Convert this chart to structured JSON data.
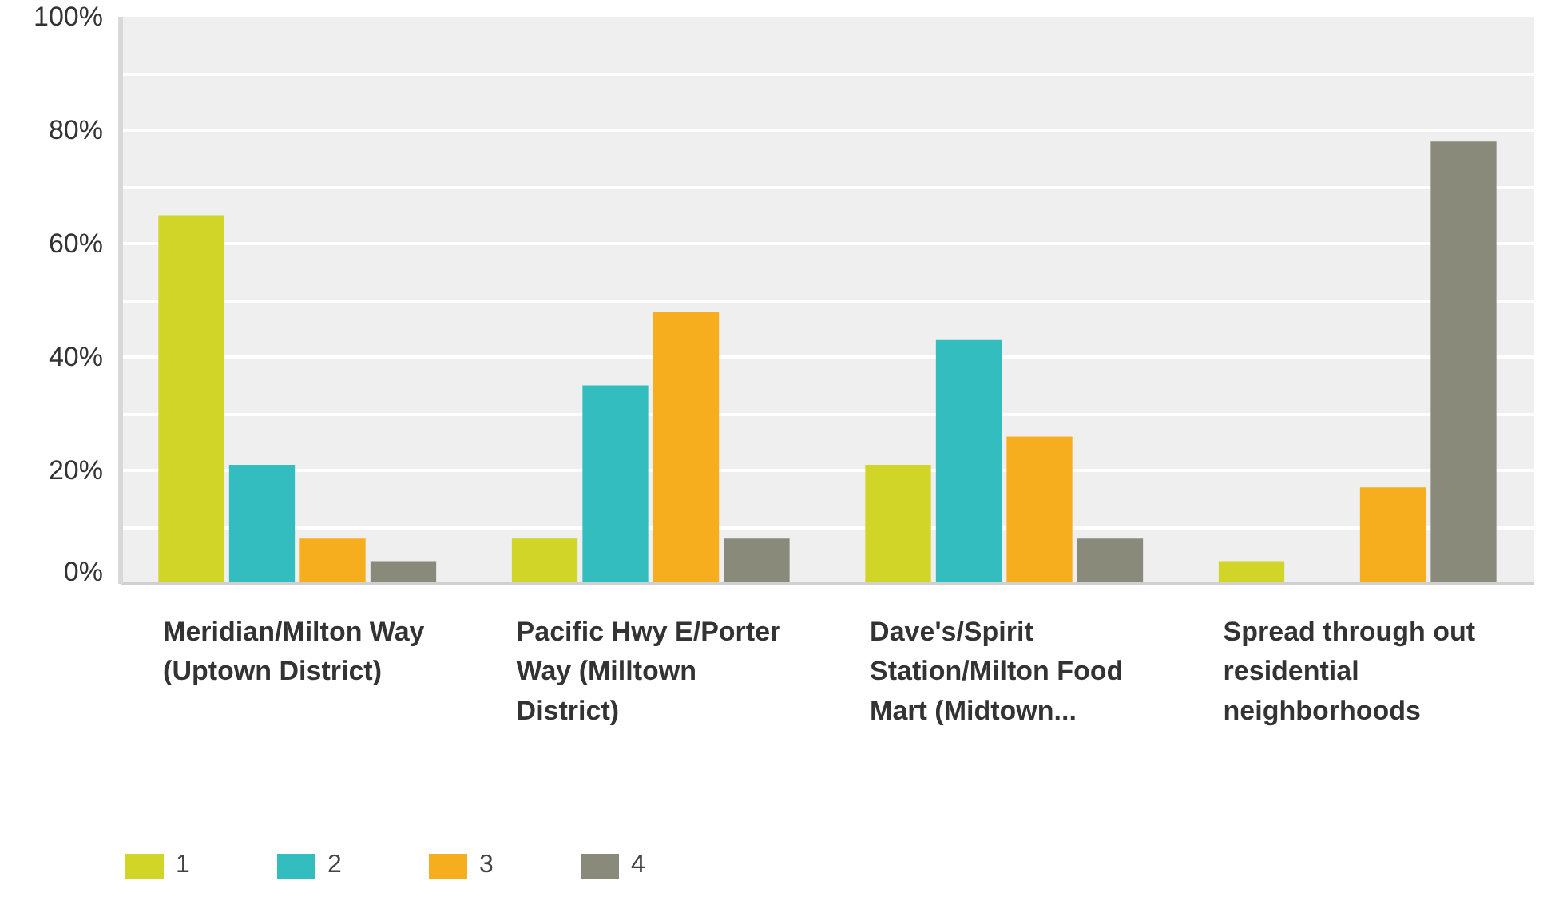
{
  "chart_data": {
    "type": "bar",
    "categories": [
      "Meridian/Milton Way (Uptown District)",
      "Pacific Hwy E/Porter Way (Milltown District)",
      "Dave's/Spirit Station/Milton Food Mart (Midtown...",
      "Spread through out residential neighborhoods"
    ],
    "series": [
      {
        "name": "1",
        "color": "#d0d527",
        "values": [
          65,
          8,
          21,
          4
        ]
      },
      {
        "name": "2",
        "color": "#34bdbf",
        "values": [
          21,
          35,
          43,
          0
        ]
      },
      {
        "name": "3",
        "color": "#f6ae1f",
        "values": [
          8,
          48,
          26,
          17
        ]
      },
      {
        "name": "4",
        "color": "#8a8a7a",
        "values": [
          4,
          8,
          8,
          78
        ]
      }
    ],
    "ylim": [
      0,
      100
    ],
    "yticks": [
      {
        "value": 0,
        "label": "0%"
      },
      {
        "value": 10,
        "label": null
      },
      {
        "value": 20,
        "label": "20%"
      },
      {
        "value": 30,
        "label": null
      },
      {
        "value": 40,
        "label": "40%"
      },
      {
        "value": 50,
        "label": null
      },
      {
        "value": 60,
        "label": "60%"
      },
      {
        "value": 70,
        "label": null
      },
      {
        "value": 80,
        "label": "80%"
      },
      {
        "value": 90,
        "label": null
      },
      {
        "value": 100,
        "label": "100%"
      }
    ],
    "grid": "y",
    "legend": "bottom"
  }
}
